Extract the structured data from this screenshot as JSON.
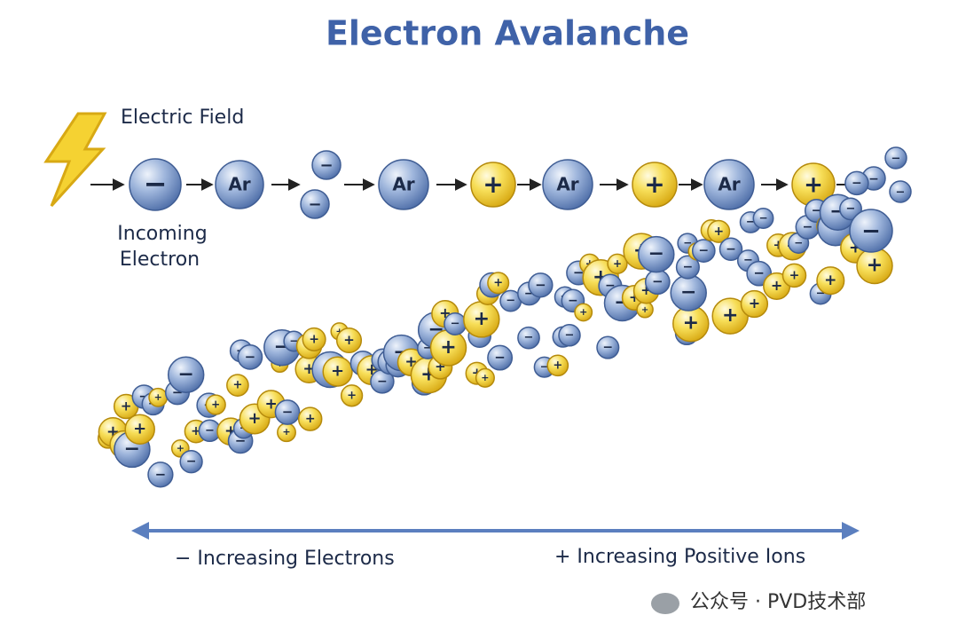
{
  "title": "Electron Avalanche",
  "field_label": "Electric Field",
  "incoming_label": [
    "Incoming",
    "Electron"
  ],
  "atom_label": "Ar",
  "electron_sign": "−",
  "ion_sign": "+",
  "left_label": "− Increasing Electrons",
  "right_label": "+ Increasing Positive Ions",
  "watermark": "公众号 · PVD技术部"
}
